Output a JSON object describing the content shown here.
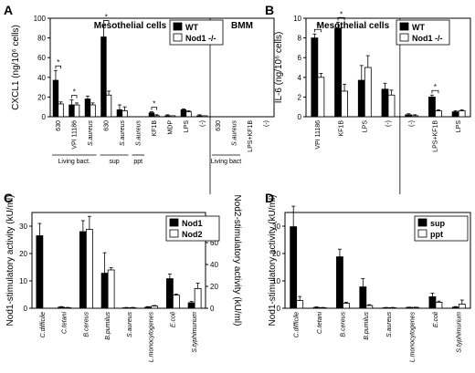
{
  "chart_data": [
    {
      "id": "A",
      "panel_label": "A",
      "type": "bar",
      "ylabel": "CXCL1 (ng/10⁶ cells)",
      "ylim": [
        0,
        100
      ],
      "yticks": [
        0,
        20,
        40,
        60,
        80,
        100
      ],
      "sections": [
        {
          "name": "Mesothelial cells",
          "from": 0,
          "to": 10
        },
        {
          "name": "BMM",
          "from": 10,
          "to": 14
        }
      ],
      "categories": [
        "630",
        "VPI 11186",
        "S.aureus",
        "630",
        "S.aureus",
        "S.aureus",
        "KF1B",
        "MDP",
        "LPS",
        "(-)",
        "630",
        "S.aureus",
        "LPS+KF1B",
        "(-)"
      ],
      "italic_categories": [
        2,
        4,
        5,
        11
      ],
      "groups": [
        {
          "label": "Living bact.",
          "from": 0,
          "to": 2
        },
        {
          "label": "sup",
          "from": 3,
          "to": 4
        },
        {
          "label": "ppt",
          "from": 5,
          "to": 5
        },
        {
          "label": "Living bact",
          "from": 10,
          "to": 11
        }
      ],
      "series": [
        {
          "name": "WT",
          "values": [
            37,
            12,
            18,
            81,
            7,
            0,
            4,
            1,
            7,
            1,
            0,
            0,
            0,
            0
          ],
          "errors": [
            10,
            5,
            3,
            12,
            5,
            0,
            1,
            1,
            1,
            1,
            0,
            0,
            0,
            0
          ]
        },
        {
          "name": "Nod1 -/-",
          "values": [
            13,
            12,
            12,
            22,
            6,
            0,
            1,
            1,
            5,
            1,
            0,
            0,
            0,
            0
          ],
          "errors": [
            2,
            2,
            2,
            4,
            4,
            0,
            1,
            0,
            1,
            0,
            0,
            0,
            0,
            0
          ]
        }
      ],
      "significance": [
        0,
        1,
        3,
        6
      ],
      "legend": "top-right"
    },
    {
      "id": "B",
      "panel_label": "B",
      "type": "bar",
      "ylabel": "IL-6 (ng/10⁶ cells)",
      "ylim": [
        0,
        10
      ],
      "yticks": [
        0,
        2,
        4,
        6,
        8,
        10
      ],
      "sections": [
        {
          "name": "Mesothelial cells",
          "from": 0,
          "to": 4
        },
        {
          "name": "BMM",
          "from": 4,
          "to": 7
        }
      ],
      "categories": [
        "VPI 11186",
        "KF1B",
        "LPS",
        "(-)",
        "(-)",
        "LPS+KF1B",
        "LPS"
      ],
      "italic_categories": [],
      "groups": [],
      "series": [
        {
          "name": "WT",
          "values": [
            8.0,
            9.0,
            3.7,
            2.8,
            0.2,
            2.0,
            0.5
          ],
          "errors": [
            0.4,
            0.6,
            1.5,
            0.6,
            0.1,
            0.2,
            0.1
          ]
        },
        {
          "name": "Nod1 -/-",
          "values": [
            4.0,
            2.6,
            5.0,
            2.2,
            0.1,
            0.6,
            0.6
          ],
          "errors": [
            0.4,
            0.7,
            1.2,
            0.5,
            0.1,
            0.1,
            0.1
          ]
        }
      ],
      "significance": [
        0,
        1,
        5
      ],
      "legend": "top-right"
    },
    {
      "id": "C",
      "panel_label": "C",
      "type": "bar",
      "ylabel": "Nod1-stimulatory activity (kU/ml)",
      "y2label": "Nod2-stimulatory activity (kU/ml)",
      "ylim": [
        0,
        35
      ],
      "yticks": [
        0,
        10,
        20,
        30
      ],
      "y2lim": [
        0,
        87.5
      ],
      "y2ticks": [
        0,
        20,
        40,
        60,
        80
      ],
      "categories": [
        "C.difficile",
        "C.tetani",
        "B.cereus",
        "B.pumilus",
        "S.aureus",
        "L.monocytogenes",
        "E.coli",
        "S.typhimurium"
      ],
      "series": [
        {
          "name": "Nod1",
          "axis": "left",
          "values": [
            26.5,
            0.4,
            28,
            12.8,
            0.2,
            0.4,
            10.8,
            2.0
          ],
          "errors": [
            4.5,
            0.2,
            4,
            7.5,
            0.1,
            0.2,
            1.7,
            0.5
          ]
        },
        {
          "name": "Nod2",
          "axis": "right",
          "values": [
            0,
            0.5,
            72,
            35,
            0.5,
            2,
            12,
            18
          ],
          "errors": [
            0,
            0.3,
            12,
            2,
            0.3,
            0.5,
            1,
            5
          ]
        }
      ],
      "legend": "top-right"
    },
    {
      "id": "D",
      "panel_label": "D",
      "type": "bar",
      "ylabel": "Nod1-stimulatory activity (kU/ml)",
      "ylim": [
        0,
        35
      ],
      "yticks": [
        0,
        10,
        20,
        30
      ],
      "categories": [
        "C.difficile",
        "C.tetani",
        "B.cereus",
        "B.pumilus",
        "S.aureus",
        "L.monocytogenes",
        "E.coli",
        "S.typhimurium"
      ],
      "series": [
        {
          "name": "sup",
          "values": [
            29.8,
            0.3,
            18.8,
            7.8,
            0.2,
            0.3,
            4.2,
            0.4
          ],
          "errors": [
            7.5,
            0.2,
            2.8,
            3.0,
            0.1,
            0.1,
            1.3,
            0.2
          ]
        },
        {
          "name": "ppt",
          "values": [
            2.8,
            0.2,
            1.8,
            1.0,
            0.2,
            0.3,
            2.2,
            1.5
          ],
          "errors": [
            1.5,
            0.1,
            0.4,
            0.3,
            0.1,
            0.1,
            0.4,
            1.5
          ]
        }
      ],
      "legend": "top-right"
    }
  ]
}
